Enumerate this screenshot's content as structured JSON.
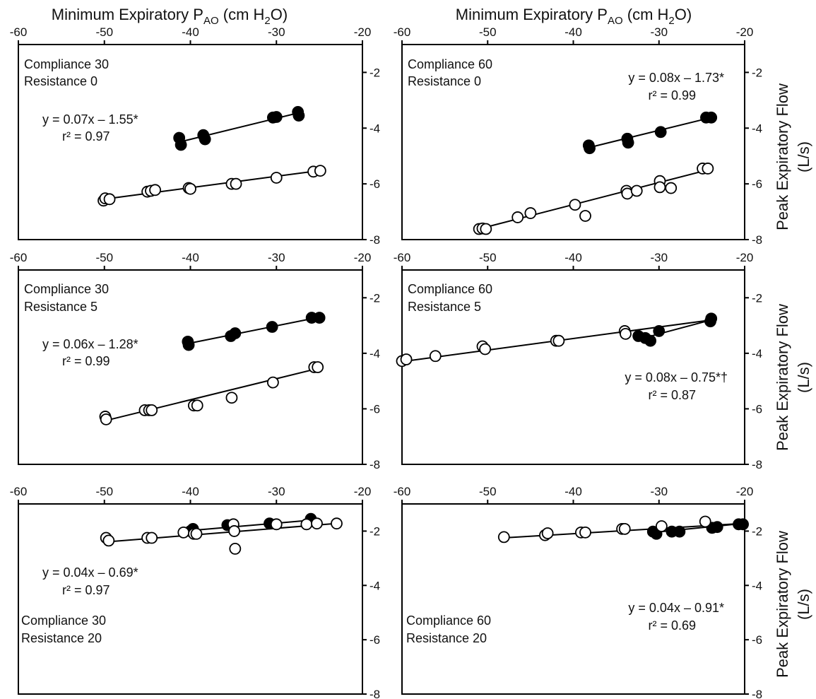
{
  "figure": {
    "top_axis_title": {
      "pre": "Minimum Expiratory P",
      "sub1": "AO",
      "mid": " (cm H",
      "sub2": "2",
      "post": "O)"
    },
    "right_axis_title": {
      "line1": "Peak Expiratory Flow",
      "line2": "(L/s)"
    }
  },
  "chart_data": [
    {
      "type": "scatter",
      "panel": "Compliance 30 / Resistance 0",
      "labels": [
        "Compliance 30",
        "Resistance 0"
      ],
      "equation": "y = 0.07x – 1.55*",
      "r2_label": "r² = 0.97",
      "xlim": [
        -60,
        -20
      ],
      "ylim": [
        -8,
        -1
      ],
      "x_ticks": [
        "-60",
        "-50",
        "-40",
        "-30",
        "-20"
      ],
      "y_ticks": [
        "-2",
        "-4",
        "-6",
        "-8"
      ],
      "series": [
        {
          "marker": "filled",
          "points": [
            [
              -41.3,
              -4.35
            ],
            [
              -41.1,
              -4.6
            ],
            [
              -38.5,
              -4.25
            ],
            [
              -38.3,
              -4.4
            ],
            [
              -30.4,
              -3.62
            ],
            [
              -30.0,
              -3.6
            ],
            [
              -27.5,
              -3.42
            ],
            [
              -27.4,
              -3.55
            ]
          ],
          "fit": [
            [
              -41.3,
              -4.5
            ],
            [
              -27.4,
              -3.45
            ]
          ]
        },
        {
          "marker": "open",
          "points": [
            [
              -50.1,
              -6.6
            ],
            [
              -49.9,
              -6.52
            ],
            [
              -49.4,
              -6.55
            ],
            [
              -45.0,
              -6.28
            ],
            [
              -44.6,
              -6.25
            ],
            [
              -44.1,
              -6.22
            ],
            [
              -40.2,
              -6.15
            ],
            [
              -40.0,
              -6.18
            ],
            [
              -35.2,
              -6.0
            ],
            [
              -34.7,
              -6.0
            ],
            [
              -30.0,
              -5.78
            ],
            [
              -25.7,
              -5.56
            ],
            [
              -24.9,
              -5.53
            ]
          ],
          "fit": [
            [
              -50.1,
              -6.55
            ],
            [
              -24.9,
              -5.52
            ]
          ]
        }
      ]
    },
    {
      "type": "scatter",
      "panel": "Compliance 60 / Resistance 0",
      "labels": [
        "Compliance 60",
        "Resistance 0"
      ],
      "equation": "y = 0.08x – 1.73*",
      "r2_label": "r² = 0.99",
      "xlim": [
        -60,
        -20
      ],
      "ylim": [
        -8,
        -1
      ],
      "x_ticks": [
        "-60",
        "-50",
        "-40",
        "-30",
        "-20"
      ],
      "y_ticks": [
        "-2",
        "-4",
        "-6",
        "-8"
      ],
      "series": [
        {
          "marker": "filled",
          "points": [
            [
              -38.2,
              -4.62
            ],
            [
              -38.1,
              -4.72
            ],
            [
              -33.7,
              -4.38
            ],
            [
              -33.6,
              -4.52
            ],
            [
              -29.8,
              -4.14
            ],
            [
              -24.5,
              -3.62
            ],
            [
              -23.9,
              -3.62
            ]
          ],
          "fit": [
            [
              -38.2,
              -4.7
            ],
            [
              -23.9,
              -3.62
            ]
          ]
        },
        {
          "marker": "open",
          "points": [
            [
              -51.0,
              -7.62
            ],
            [
              -50.6,
              -7.6
            ],
            [
              -50.2,
              -7.62
            ],
            [
              -46.5,
              -7.2
            ],
            [
              -45.0,
              -7.05
            ],
            [
              -39.8,
              -6.75
            ],
            [
              -38.6,
              -7.15
            ],
            [
              -33.8,
              -6.25
            ],
            [
              -33.7,
              -6.35
            ],
            [
              -32.6,
              -6.25
            ],
            [
              -29.9,
              -5.9
            ],
            [
              -29.9,
              -6.12
            ],
            [
              -28.6,
              -6.15
            ],
            [
              -24.9,
              -5.45
            ],
            [
              -24.3,
              -5.45
            ]
          ],
          "fit": [
            [
              -50.8,
              -7.6
            ],
            [
              -24.3,
              -5.5
            ]
          ]
        }
      ]
    },
    {
      "type": "scatter",
      "panel": "Compliance 30 / Resistance 5",
      "labels": [
        "Compliance 30",
        "Resistance 5"
      ],
      "equation": "y = 0.06x – 1.28*",
      "r2_label": "r² = 0.99",
      "xlim": [
        -60,
        -20
      ],
      "ylim": [
        -8,
        -1
      ],
      "x_ticks": [
        "-60",
        "-50",
        "-40",
        "-30",
        "-20"
      ],
      "y_ticks": [
        "-2",
        "-4",
        "-6",
        "-8"
      ],
      "series": [
        {
          "marker": "filled",
          "points": [
            [
              -40.3,
              -3.58
            ],
            [
              -40.2,
              -3.7
            ],
            [
              -35.3,
              -3.38
            ],
            [
              -34.8,
              -3.28
            ],
            [
              -30.5,
              -3.05
            ],
            [
              -25.9,
              -2.72
            ],
            [
              -25.0,
              -2.72
            ]
          ],
          "fit": [
            [
              -40.3,
              -3.65
            ],
            [
              -25.0,
              -2.7
            ]
          ]
        },
        {
          "marker": "open",
          "points": [
            [
              -49.9,
              -6.28
            ],
            [
              -49.8,
              -6.38
            ],
            [
              -45.3,
              -6.05
            ],
            [
              -44.8,
              -6.05
            ],
            [
              -44.5,
              -6.05
            ],
            [
              -39.6,
              -5.88
            ],
            [
              -39.2,
              -5.88
            ],
            [
              -35.2,
              -5.6
            ],
            [
              -30.4,
              -5.05
            ],
            [
              -25.6,
              -4.5
            ],
            [
              -25.2,
              -4.5
            ]
          ],
          "fit": [
            [
              -49.8,
              -6.42
            ],
            [
              -25.2,
              -4.55
            ]
          ]
        }
      ]
    },
    {
      "type": "scatter",
      "panel": "Compliance 60 / Resistance 5",
      "labels": [
        "Compliance 60",
        "Resistance 5"
      ],
      "equation": "y = 0.08x – 0.75*†",
      "r2_label": "r² = 0.87",
      "xlim": [
        -60,
        -20
      ],
      "ylim": [
        -8,
        -1
      ],
      "x_ticks": [
        "-60",
        "-50",
        "-40",
        "-30",
        "-20"
      ],
      "y_ticks": [
        "-2",
        "-4",
        "-6",
        "-8"
      ],
      "series": [
        {
          "marker": "filled",
          "points": [
            [
              -32.4,
              -3.38
            ],
            [
              -31.6,
              -3.45
            ],
            [
              -31.0,
              -3.55
            ],
            [
              -30.0,
              -3.2
            ],
            [
              -24.0,
              -2.85
            ],
            [
              -23.9,
              -2.75
            ]
          ],
          "fit": [
            [
              -32.4,
              -3.5
            ],
            [
              -23.9,
              -2.8
            ]
          ]
        },
        {
          "marker": "open",
          "points": [
            [
              -60.0,
              -4.28
            ],
            [
              -59.5,
              -4.22
            ],
            [
              -56.1,
              -4.1
            ],
            [
              -50.6,
              -3.75
            ],
            [
              -50.3,
              -3.85
            ],
            [
              -42.0,
              -3.55
            ],
            [
              -41.7,
              -3.55
            ],
            [
              -34.0,
              -3.2
            ],
            [
              -33.9,
              -3.3
            ]
          ],
          "fit": [
            [
              -60.0,
              -4.3
            ],
            [
              -23.9,
              -2.8
            ]
          ]
        }
      ]
    },
    {
      "type": "scatter",
      "panel": "Compliance 30 / Resistance 20",
      "labels": [
        "Compliance 30",
        "Resistance 20"
      ],
      "equation": "y = 0.04x – 0.69*",
      "r2_label": "r² = 0.97",
      "xlim": [
        -60,
        -20
      ],
      "ylim": [
        -8,
        -1
      ],
      "x_ticks": [
        "-60",
        "-50",
        "-40",
        "-30",
        "-20"
      ],
      "y_ticks": [
        "-2",
        "-4",
        "-6",
        "-8"
      ],
      "series": [
        {
          "marker": "filled",
          "points": [
            [
              -40.0,
              -2.0
            ],
            [
              -39.7,
              -1.92
            ],
            [
              -35.7,
              -1.78
            ],
            [
              -30.8,
              -1.72
            ],
            [
              -26.0,
              -1.55
            ]
          ],
          "fit": [
            [
              -40.0,
              -1.98
            ],
            [
              -26.0,
              -1.6
            ]
          ]
        },
        {
          "marker": "open",
          "points": [
            [
              -49.8,
              -2.25
            ],
            [
              -49.5,
              -2.35
            ],
            [
              -45.0,
              -2.25
            ],
            [
              -44.5,
              -2.25
            ],
            [
              -40.8,
              -2.05
            ],
            [
              -39.6,
              -2.1
            ],
            [
              -39.3,
              -2.1
            ],
            [
              -35.0,
              -1.75
            ],
            [
              -34.9,
              -2.0
            ],
            [
              -34.8,
              -2.65
            ],
            [
              -30.0,
              -1.75
            ],
            [
              -26.5,
              -1.75
            ],
            [
              -25.3,
              -1.72
            ],
            [
              -23.0,
              -1.72
            ]
          ],
          "fit": [
            [
              -49.8,
              -2.4
            ],
            [
              -23.0,
              -1.72
            ]
          ]
        }
      ]
    },
    {
      "type": "scatter",
      "panel": "Compliance 60 / Resistance 20",
      "labels": [
        "Compliance 60",
        "Resistance 20"
      ],
      "equation": "y = 0.04x – 0.91*",
      "r2_label": "r² = 0.69",
      "xlim": [
        -60,
        -20
      ],
      "ylim": [
        -8,
        -1
      ],
      "x_ticks": [
        "-60",
        "-50",
        "-40",
        "-30",
        "-20"
      ],
      "y_ticks": [
        "-2",
        "-4",
        "-6",
        "-8"
      ],
      "series": [
        {
          "marker": "filled",
          "points": [
            [
              -30.7,
              -2.02
            ],
            [
              -30.3,
              -2.1
            ],
            [
              -28.5,
              -2.02
            ],
            [
              -27.6,
              -2.02
            ],
            [
              -23.8,
              -1.88
            ],
            [
              -23.2,
              -1.85
            ],
            [
              -20.7,
              -1.75
            ],
            [
              -20.2,
              -1.75
            ]
          ],
          "fit": [
            [
              -30.7,
              -2.05
            ],
            [
              -20.2,
              -1.72
            ]
          ]
        },
        {
          "marker": "open",
          "points": [
            [
              -48.1,
              -2.22
            ],
            [
              -43.3,
              -2.15
            ],
            [
              -43.0,
              -2.08
            ],
            [
              -39.1,
              -2.05
            ],
            [
              -38.6,
              -2.05
            ],
            [
              -34.3,
              -1.92
            ],
            [
              -34.0,
              -1.92
            ],
            [
              -29.7,
              -1.82
            ],
            [
              -24.6,
              -1.65
            ]
          ],
          "fit": [
            [
              -48.1,
              -2.25
            ],
            [
              -20.2,
              -1.72
            ]
          ]
        }
      ]
    }
  ]
}
